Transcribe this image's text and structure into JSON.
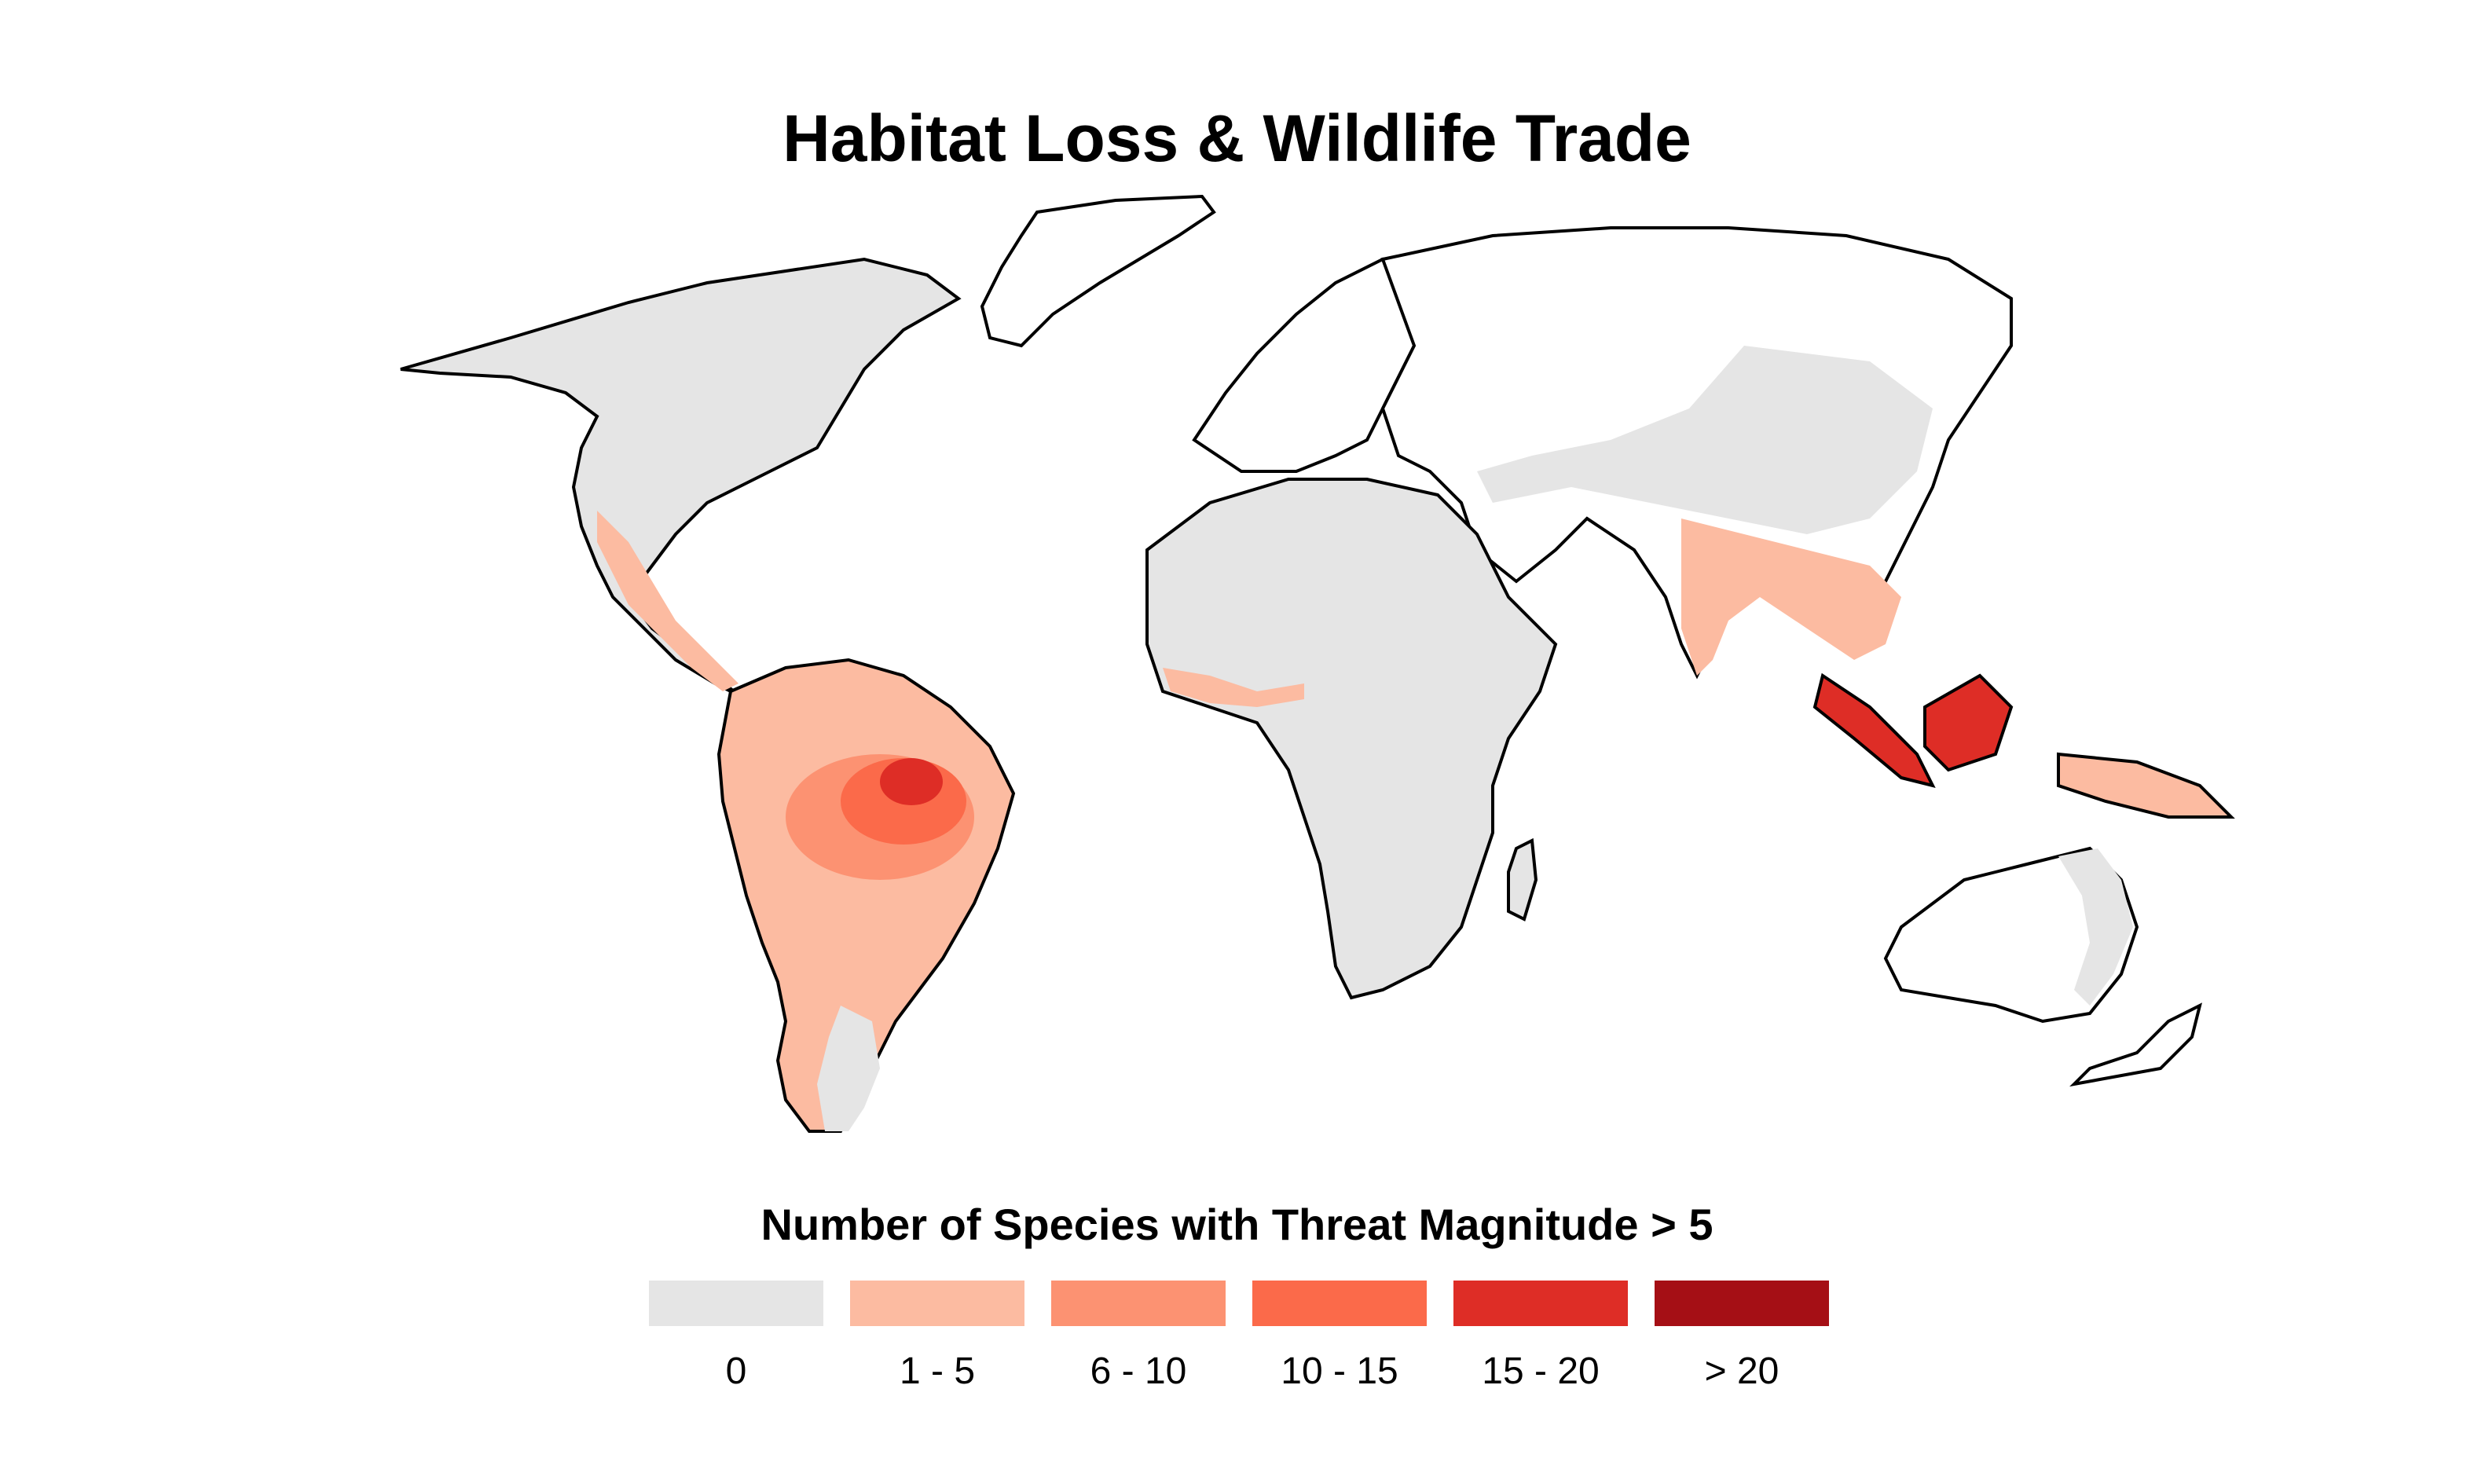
{
  "title": "Habitat Loss & Wildlife Trade",
  "legend": {
    "title": "Number of Species with Threat Magnitude > 5",
    "items": [
      {
        "label": "0",
        "color": "#e5e5e5"
      },
      {
        "label": "1 - 5",
        "color": "#fcbba1"
      },
      {
        "label": "6 - 10",
        "color": "#fc9272"
      },
      {
        "label": "10 - 15",
        "color": "#fb6a4a"
      },
      {
        "label": "15 - 20",
        "color": "#de2d26"
      },
      {
        "label": "> 20",
        "color": "#a50f15"
      }
    ]
  },
  "map": {
    "projection": "Robinson-like world projection",
    "outline_color": "#000000",
    "background": "#ffffff"
  }
}
